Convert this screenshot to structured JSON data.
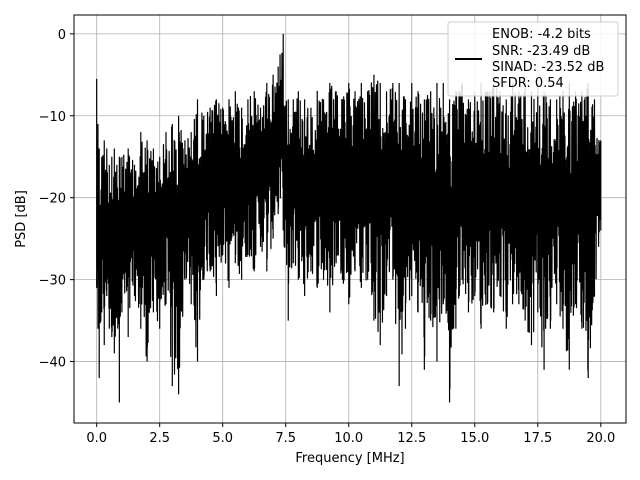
{
  "chart_data": {
    "type": "line",
    "xlabel": "Frequency [MHz]",
    "ylabel": "PSD [dB]",
    "xlim": [
      -0.9,
      21.0
    ],
    "ylim": [
      -47.5,
      2.3
    ],
    "xticks": [
      0.0,
      2.5,
      5.0,
      7.5,
      10.0,
      12.5,
      15.0,
      17.5,
      20.0
    ],
    "xtick_labels": [
      "0.0",
      "2.5",
      "5.0",
      "7.5",
      "10.0",
      "12.5",
      "15.0",
      "17.5",
      "20.0"
    ],
    "yticks": [
      0,
      -10,
      -20,
      -30,
      -40
    ],
    "ytick_labels": [
      "0",
      "−10",
      "−20",
      "−30",
      "−40"
    ],
    "grid": true,
    "legend_position": "top-right",
    "legend_lines": [
      "ENOB: -4.2 bits",
      "SNR: -23.49 dB",
      "SINAD: -23.52 dB",
      "SFDR: 0.54"
    ],
    "series": [
      {
        "color": "#000000",
        "x": [
          0.0,
          0.05,
          0.1,
          0.2,
          0.3,
          0.4,
          0.5,
          0.6,
          0.7,
          0.8,
          0.9,
          1.0,
          1.25,
          1.5,
          1.75,
          2.0,
          2.25,
          2.5,
          2.75,
          3.0,
          3.25,
          3.5,
          3.75,
          4.0,
          4.25,
          4.5,
          4.75,
          5.0,
          5.25,
          5.5,
          5.75,
          6.0,
          6.25,
          6.5,
          6.75,
          7.0,
          7.2,
          7.4,
          7.6,
          7.8,
          8.0,
          8.25,
          8.5,
          8.75,
          9.0,
          9.25,
          9.5,
          9.75,
          10.0,
          10.25,
          10.5,
          10.75,
          11.0,
          11.25,
          11.5,
          11.75,
          12.0,
          12.25,
          12.5,
          12.75,
          13.0,
          13.25,
          13.5,
          13.75,
          14.0,
          14.25,
          14.5,
          14.75,
          15.0,
          15.25,
          15.5,
          15.75,
          16.0,
          16.25,
          16.5,
          16.75,
          17.0,
          17.25,
          17.5,
          17.75,
          18.0,
          18.25,
          18.5,
          18.75,
          19.0,
          19.25,
          19.5,
          19.75,
          20.0
        ],
        "y_upper": [
          -5.5,
          -11,
          -14,
          -15,
          -13,
          -14,
          -16,
          -15,
          -14,
          -16,
          -15,
          -15,
          -14,
          -16,
          -12,
          -13,
          -14,
          -15,
          -12,
          -11,
          -10,
          -13,
          -12,
          -8,
          -10,
          -9,
          -8,
          -9,
          -8,
          -7,
          -9,
          -8,
          -7,
          -9,
          -6,
          -5,
          -4,
          0,
          -8,
          -8,
          -7,
          -8,
          -9,
          -7,
          -8,
          -6,
          -7,
          -8,
          -6,
          -7,
          -6,
          -7,
          -5,
          -6,
          -7,
          -6,
          -6,
          -8,
          -6,
          -7,
          -8,
          -7,
          -6,
          -6,
          -8,
          -7,
          -6,
          -8,
          -7,
          -6,
          -7,
          -6,
          -7,
          -8,
          -6,
          -7,
          -6,
          -7,
          -6,
          -7,
          -8,
          -8,
          -7,
          -6,
          -7,
          -7,
          -6,
          -8,
          -13
        ],
        "y_lower": [
          -31,
          -36,
          -42,
          -34,
          -38,
          -32,
          -36,
          -37,
          -39,
          -34,
          -45,
          -34,
          -37,
          -32,
          -36,
          -40,
          -34,
          -36,
          -33,
          -43,
          -44,
          -30,
          -33,
          -40,
          -30,
          -29,
          -32,
          -27,
          -31,
          -28,
          -30,
          -27,
          -29,
          -26,
          -29,
          -25,
          -22,
          -24,
          -35,
          -28,
          -30,
          -32,
          -29,
          -31,
          -30,
          -34,
          -28,
          -30,
          -33,
          -29,
          -31,
          -30,
          -35,
          -38,
          -32,
          -30,
          -43,
          -36,
          -32,
          -34,
          -41,
          -35,
          -40,
          -33,
          -45,
          -36,
          -30,
          -34,
          -32,
          -36,
          -33,
          -34,
          -32,
          -36,
          -33,
          -33,
          -35,
          -38,
          -34,
          -41,
          -36,
          -33,
          -36,
          -41,
          -33,
          -36,
          -42,
          -32,
          -24
        ]
      }
    ]
  }
}
